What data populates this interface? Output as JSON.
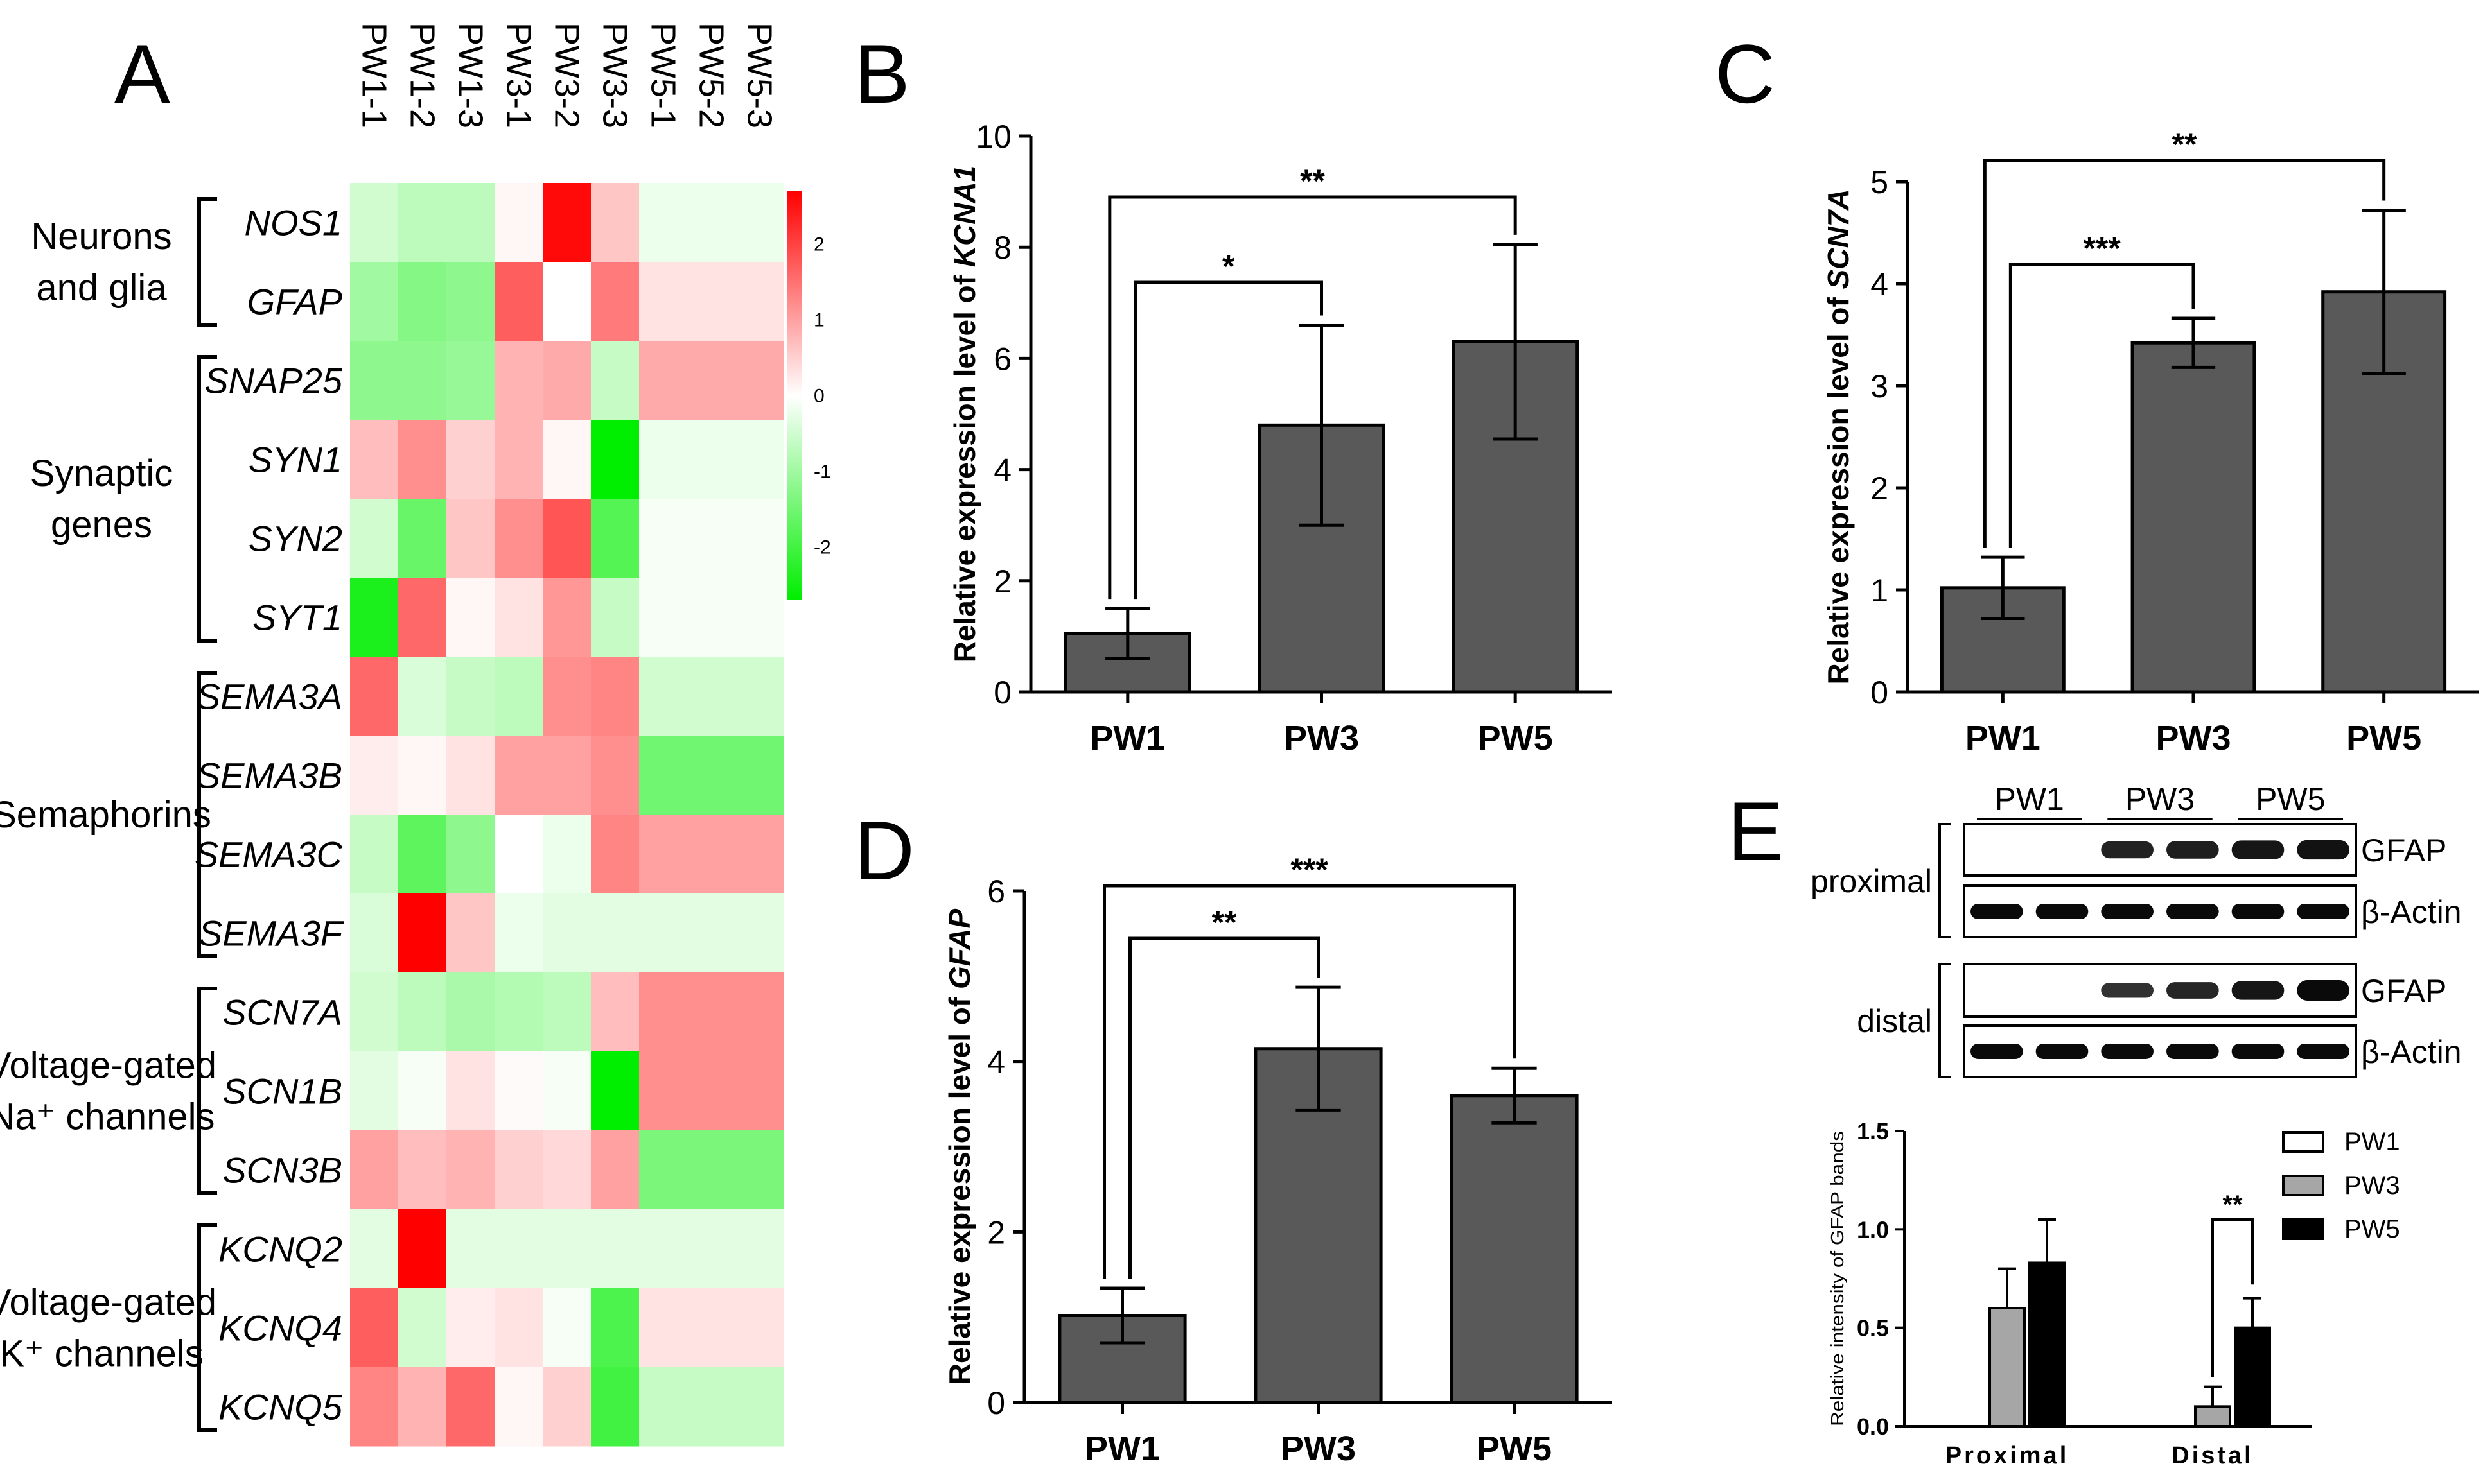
{
  "panel_letters": [
    "A",
    "B",
    "C",
    "D",
    "E"
  ],
  "heatmap": {
    "samples": [
      "PW1-1",
      "PW1-2",
      "PW1-3",
      "PW3-1",
      "PW3-2",
      "PW3-3",
      "PW5-1",
      "PW5-2",
      "PW5-3"
    ],
    "genes": [
      "NOS1",
      "GFAP",
      "SNAP25",
      "SYN1",
      "SYN2",
      "SYT1",
      "SEMA3A",
      "SEMA3B",
      "SEMA3C",
      "SEMA3F",
      "SCN7A",
      "SCN1B",
      "SCN3B",
      "KCNQ2",
      "KCNQ4",
      "KCNQ5"
    ],
    "groups": [
      {
        "lines": [
          "Neurons",
          "and glia"
        ],
        "first_gene": 0,
        "last_gene": 1
      },
      {
        "lines": [
          "Synaptic",
          "genes"
        ],
        "first_gene": 2,
        "last_gene": 5
      },
      {
        "lines": [
          "Semaphorins"
        ],
        "first_gene": 6,
        "last_gene": 9
      },
      {
        "lines": [
          "Voltage-gated",
          "Na⁺ channels"
        ],
        "first_gene": 10,
        "last_gene": 12
      },
      {
        "lines": [
          "Voltage-gated",
          "K⁺ channels"
        ],
        "first_gene": 13,
        "last_gene": 15
      }
    ],
    "values": [
      [
        -0.5,
        -0.7,
        -0.7,
        0.1,
        2.6,
        0.6,
        -0.2,
        -0.2,
        -0.2
      ],
      [
        -1.0,
        -1.3,
        -1.2,
        1.7,
        0.0,
        1.4,
        0.3,
        0.3,
        0.3
      ],
      [
        -1.2,
        -1.2,
        -1.1,
        0.8,
        0.9,
        -0.6,
        0.9,
        0.9,
        0.9
      ],
      [
        0.7,
        1.2,
        0.5,
        0.8,
        0.1,
        -2.7,
        -0.2,
        -0.2,
        -0.2
      ],
      [
        -0.5,
        -1.6,
        0.6,
        1.2,
        1.8,
        -1.8,
        -0.1,
        -0.1,
        -0.1
      ],
      [
        -2.4,
        1.6,
        0.1,
        0.3,
        1.1,
        -0.6,
        -0.1,
        -0.1,
        -0.1
      ],
      [
        1.6,
        -0.4,
        -0.6,
        -0.7,
        1.2,
        1.3,
        -0.5,
        -0.5,
        -0.5
      ],
      [
        0.2,
        0.1,
        0.3,
        1.0,
        1.0,
        1.2,
        -1.5,
        -1.5,
        -1.5
      ],
      [
        -0.6,
        -1.7,
        -1.2,
        0.0,
        -0.2,
        1.3,
        1.0,
        1.0,
        1.0
      ],
      [
        -0.4,
        2.7,
        0.6,
        -0.2,
        -0.3,
        -0.3,
        -0.3,
        -0.3,
        -0.3
      ],
      [
        -0.5,
        -0.7,
        -0.9,
        -0.8,
        -0.7,
        0.7,
        1.2,
        1.2,
        1.2
      ],
      [
        -0.3,
        -0.1,
        0.3,
        0.05,
        -0.1,
        -2.9,
        1.2,
        1.2,
        1.2
      ],
      [
        1.0,
        0.7,
        0.8,
        0.5,
        0.4,
        1.0,
        -1.4,
        -1.4,
        -1.4
      ],
      [
        -0.3,
        2.8,
        -0.3,
        -0.3,
        -0.3,
        -0.3,
        -0.3,
        -0.3,
        -0.3
      ],
      [
        1.7,
        -0.5,
        0.2,
        0.3,
        -0.1,
        -1.9,
        0.3,
        0.3,
        0.3
      ],
      [
        1.3,
        0.8,
        1.6,
        0.1,
        0.5,
        -2.0,
        -0.6,
        -0.6,
        -0.6
      ]
    ],
    "colorbar_ticks": [
      "2",
      "1",
      "0",
      "-1",
      "-2"
    ],
    "colorbar_range": [
      -2.7,
      2.7
    ],
    "colors": {
      "high": "#ff0000",
      "mid": "#ffffff",
      "low": "#00ee00"
    }
  },
  "chart_data": [
    {
      "panel": "B",
      "type": "bar",
      "categories": [
        "PW1",
        "PW3",
        "PW5"
      ],
      "values": [
        1.05,
        4.8,
        6.3
      ],
      "errors": [
        0.45,
        1.8,
        1.75
      ],
      "ylabel_prefix": "Relative expression level of ",
      "ylabel_gene": "KCNA1",
      "ylim": [
        0,
        10
      ],
      "yticks": [
        0,
        2,
        4,
        6,
        8,
        10
      ],
      "significance": [
        {
          "from": 0,
          "to": 1,
          "label": "*"
        },
        {
          "from": 0,
          "to": 2,
          "label": "**"
        }
      ]
    },
    {
      "panel": "C",
      "type": "bar",
      "categories": [
        "PW1",
        "PW3",
        "PW5"
      ],
      "values": [
        1.02,
        3.42,
        3.92
      ],
      "errors": [
        0.3,
        0.24,
        0.8
      ],
      "ylabel_prefix": "Relative expression level of ",
      "ylabel_gene": "SCN7A",
      "ylim": [
        0,
        5
      ],
      "yticks": [
        0,
        1,
        2,
        3,
        4,
        5
      ],
      "significance": [
        {
          "from": 0,
          "to": 1,
          "label": "***"
        },
        {
          "from": 0,
          "to": 2,
          "label": "**"
        }
      ]
    },
    {
      "panel": "D",
      "type": "bar",
      "categories": [
        "PW1",
        "PW3",
        "PW5"
      ],
      "values": [
        1.02,
        4.15,
        3.6
      ],
      "errors": [
        0.32,
        0.72,
        0.32
      ],
      "ylabel_prefix": "Relative expression level of ",
      "ylabel_gene": "GFAP",
      "ylim": [
        0,
        6
      ],
      "yticks": [
        0,
        2,
        4,
        6
      ],
      "significance": [
        {
          "from": 0,
          "to": 1,
          "label": "**"
        },
        {
          "from": 0,
          "to": 2,
          "label": "***"
        }
      ]
    },
    {
      "panel": "E",
      "type": "bar",
      "categories": [
        "Proximal",
        "Distal"
      ],
      "series": [
        {
          "name": "PW1",
          "values": [
            0.0,
            0.0
          ],
          "errors": [
            0,
            0
          ],
          "color": "#ffffff"
        },
        {
          "name": "PW3",
          "values": [
            0.6,
            0.1
          ],
          "errors": [
            0.2,
            0.1
          ],
          "color": "#a6a6a6"
        },
        {
          "name": "PW5",
          "values": [
            0.83,
            0.5
          ],
          "errors": [
            0.22,
            0.15
          ],
          "color": "#000000"
        }
      ],
      "ylabel": "Relative intensity of GFAP bands",
      "ylim": [
        0,
        1.5
      ],
      "yticks": [
        "0.0",
        "0.5",
        "1.0",
        "1.5"
      ],
      "significance": [
        {
          "category": 1,
          "from_series": 1,
          "to_series": 2,
          "label": "**"
        }
      ]
    }
  ],
  "western_blot": {
    "groups": [
      "PW1",
      "PW3",
      "PW5"
    ],
    "sides": [
      "proximal",
      "distal"
    ],
    "band_labels": [
      "GFAP",
      "β-Actin"
    ],
    "lanes": 6,
    "gfap_intensity": {
      "proximal": [
        0,
        0,
        0.7,
        0.75,
        0.85,
        0.9
      ],
      "distal": [
        0,
        0,
        0.5,
        0.65,
        0.85,
        1.0
      ]
    }
  },
  "colors": {
    "bar": "#595959",
    "axis": "#000000"
  }
}
